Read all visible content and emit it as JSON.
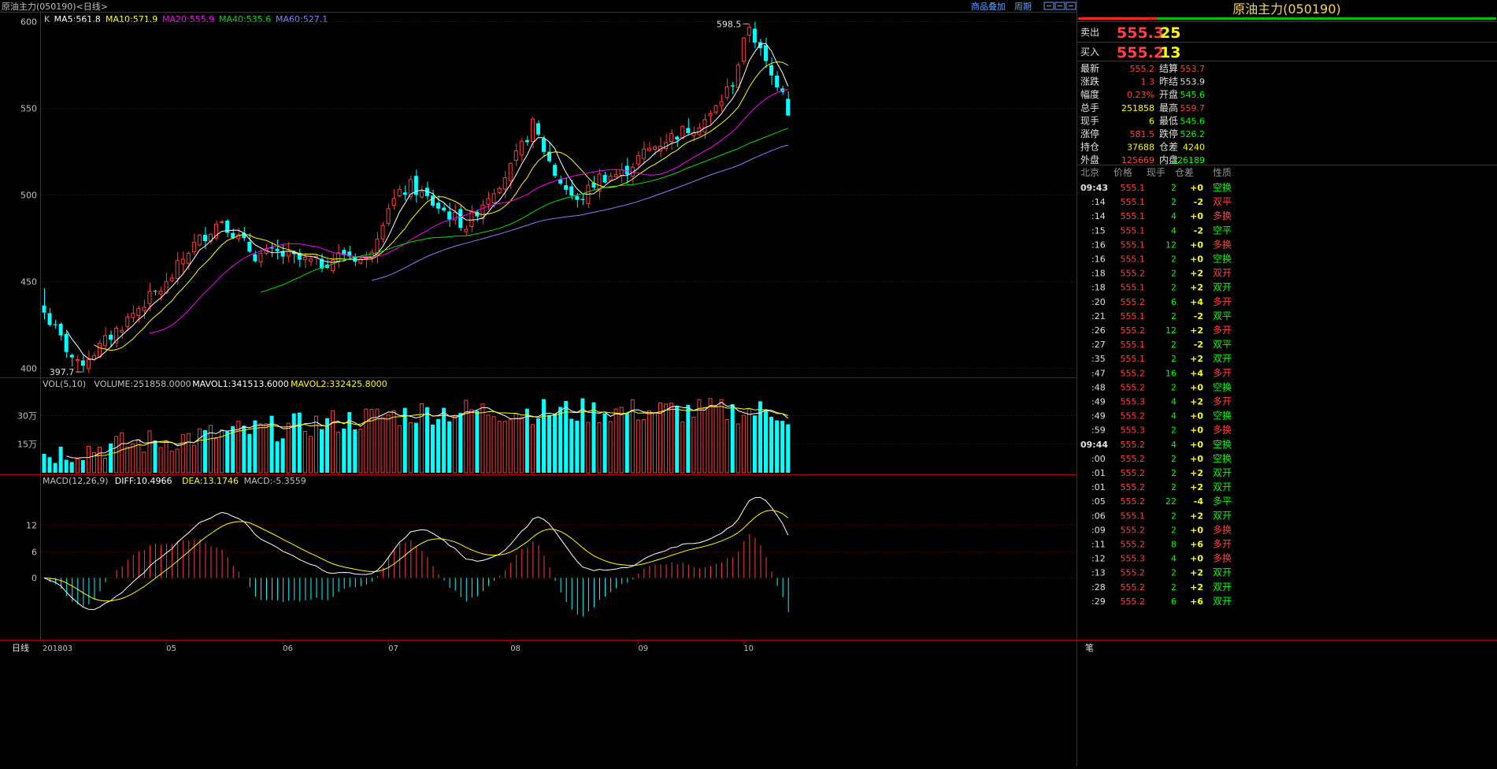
{
  "window": {
    "title": "原油主力(050190)<日线>",
    "links": [
      "商品叠加",
      "周期"
    ]
  },
  "price_panel": {
    "ma_legend": [
      {
        "label": "K",
        "color": "#c0c0c0"
      },
      {
        "label": "MA5:561.8",
        "color": "#ffffff"
      },
      {
        "label": "MA10:571.9",
        "color": "#ffff00"
      },
      {
        "label": "MA20:555.9",
        "color": "#ff00ff"
      },
      {
        "label": "MA40:535.6",
        "color": "#00e000"
      },
      {
        "label": "MA60:527.1",
        "color": "#8080ff"
      }
    ],
    "y_ticks": [
      {
        "label": "600",
        "value": 600
      },
      {
        "label": "550",
        "value": 550
      },
      {
        "label": "500",
        "value": 500
      },
      {
        "label": "450",
        "value": 450
      },
      {
        "label": "400",
        "value": 400
      }
    ],
    "high_marker": "598.5",
    "low_marker": "397.7"
  },
  "volume_panel": {
    "legend": [
      {
        "label": "VOL(5,10)",
        "color": "#c0c0c0"
      },
      {
        "label": "VOLUME:251858.0000",
        "color": "#c0c0c0"
      },
      {
        "label": "MAVOL1:341513.6000",
        "color": "#ffffff"
      },
      {
        "label": "MAVOL2:332425.8000",
        "color": "#ffff00"
      }
    ],
    "y_ticks": [
      {
        "label": "30万",
        "value": 300000
      },
      {
        "label": "15万",
        "value": 150000
      }
    ]
  },
  "macd_panel": {
    "legend": [
      {
        "label": "MACD(12,26,9)",
        "color": "#c0c0c0"
      },
      {
        "label": "DIFF:10.4966",
        "color": "#ffffff"
      },
      {
        "label": "DEA:13.1746",
        "color": "#ffff00"
      },
      {
        "label": "MACD:-5.3559",
        "color": "#c0c0c0"
      }
    ],
    "y_ticks": [
      {
        "label": "12",
        "value": 12
      },
      {
        "label": "6",
        "value": 6
      },
      {
        "label": "0",
        "value": 0
      }
    ]
  },
  "x_axis": {
    "corner_label": "日线",
    "labels": [
      {
        "label": "201803",
        "index": 0
      },
      {
        "label": "05",
        "index": 22
      },
      {
        "label": "06",
        "index": 43
      },
      {
        "label": "07",
        "index": 62
      },
      {
        "label": "08",
        "index": 84
      },
      {
        "label": "09",
        "index": 107
      },
      {
        "label": "10",
        "index": 126
      }
    ]
  },
  "chart_data": {
    "type": "candlestick",
    "title": "原油主力(050190)<日线>",
    "ylim": [
      395,
      605
    ],
    "candles": [],
    "volume": [],
    "macd": {
      "diff": [],
      "dea": [],
      "hist": []
    },
    "ma": {
      "ma5": [],
      "ma10": [],
      "ma20": [],
      "ma40": [],
      "ma60": []
    }
  },
  "quote": {
    "name": "原油主力(050190)",
    "sell": {
      "label": "卖出",
      "price": "555.3",
      "qty": "25"
    },
    "buy": {
      "label": "买入",
      "price": "555.2",
      "qty": "13"
    },
    "stats": [
      {
        "l1": "最新",
        "v1": "555.2",
        "c1": "#ff4040",
        "l2": "结算",
        "v2": "553.7",
        "c2": "#ff4040"
      },
      {
        "l1": "涨跌",
        "v1": "1.3",
        "c1": "#ff4040",
        "l2": "昨结",
        "v2": "553.9",
        "c2": "#e0e0e0"
      },
      {
        "l1": "幅度",
        "v1": "0.23%",
        "c1": "#ff4040",
        "l2": "开盘",
        "v2": "545.6",
        "c2": "#00ff00"
      },
      {
        "l1": "总手",
        "v1": "251858",
        "c1": "#ffff00",
        "l2": "最高",
        "v2": "559.7",
        "c2": "#ff4040"
      },
      {
        "l1": "现手",
        "v1": "6",
        "c1": "#ffff00",
        "l2": "最低",
        "v2": "545.6",
        "c2": "#00ff00"
      },
      {
        "l1": "涨停",
        "v1": "581.5",
        "c1": "#ff4040",
        "l2": "跌停",
        "v2": "526.2",
        "c2": "#00ff00"
      },
      {
        "l1": "持仓",
        "v1": "37688",
        "c1": "#ffff00",
        "l2": "仓差",
        "v2": "4240",
        "c2": "#ffff00"
      },
      {
        "l1": "外盘",
        "v1": "125669",
        "c1": "#ff4040",
        "l2": "内盘",
        "v2": "126189",
        "c2": "#00ff00"
      }
    ],
    "tick_headers": [
      "北京",
      "价格",
      "现手",
      "仓差",
      "性质"
    ],
    "ticks": [
      {
        "t": "09:43",
        "p": "555.1",
        "pc": "#ff4040",
        "q": "2",
        "d": "+0",
        "n": "空换",
        "nc": "#00ff00",
        "bold": true
      },
      {
        "t": ":14",
        "p": "555.1",
        "pc": "#ff4040",
        "q": "2",
        "d": "-2",
        "n": "双平",
        "nc": "#ff4040"
      },
      {
        "t": ":14",
        "p": "555.1",
        "pc": "#ff4040",
        "q": "4",
        "d": "+0",
        "n": "多换",
        "nc": "#ff4040"
      },
      {
        "t": ":15",
        "p": "555.1",
        "pc": "#ff4040",
        "q": "4",
        "d": "-2",
        "n": "空平",
        "nc": "#00ff00"
      },
      {
        "t": ":16",
        "p": "555.1",
        "pc": "#ff4040",
        "q": "12",
        "d": "+0",
        "n": "多换",
        "nc": "#ff4040"
      },
      {
        "t": ":16",
        "p": "555.1",
        "pc": "#ff4040",
        "q": "2",
        "d": "+0",
        "n": "空换",
        "nc": "#00ff00"
      },
      {
        "t": ":18",
        "p": "555.2",
        "pc": "#ff4040",
        "q": "2",
        "d": "+2",
        "n": "双开",
        "nc": "#ff4040"
      },
      {
        "t": ":18",
        "p": "555.1",
        "pc": "#ff4040",
        "q": "2",
        "d": "+2",
        "n": "双开",
        "nc": "#00ff00"
      },
      {
        "t": ":20",
        "p": "555.2",
        "pc": "#ff4040",
        "q": "6",
        "d": "+4",
        "n": "多开",
        "nc": "#ff4040"
      },
      {
        "t": ":21",
        "p": "555.1",
        "pc": "#ff4040",
        "q": "2",
        "d": "-2",
        "n": "双平",
        "nc": "#00ff00"
      },
      {
        "t": ":26",
        "p": "555.2",
        "pc": "#ff4040",
        "q": "12",
        "d": "+2",
        "n": "多开",
        "nc": "#ff4040"
      },
      {
        "t": ":27",
        "p": "555.1",
        "pc": "#ff4040",
        "q": "2",
        "d": "-2",
        "n": "双平",
        "nc": "#00ff00"
      },
      {
        "t": ":35",
        "p": "555.1",
        "pc": "#ff4040",
        "q": "2",
        "d": "+2",
        "n": "双开",
        "nc": "#00ff00"
      },
      {
        "t": ":47",
        "p": "555.2",
        "pc": "#ff4040",
        "q": "16",
        "d": "+4",
        "n": "多开",
        "nc": "#ff4040"
      },
      {
        "t": ":48",
        "p": "555.2",
        "pc": "#ff4040",
        "q": "2",
        "d": "+0",
        "n": "空换",
        "nc": "#00ff00"
      },
      {
        "t": ":49",
        "p": "555.3",
        "pc": "#ff4040",
        "q": "4",
        "d": "+2",
        "n": "多开",
        "nc": "#ff4040"
      },
      {
        "t": ":49",
        "p": "555.2",
        "pc": "#ff4040",
        "q": "4",
        "d": "+0",
        "n": "空换",
        "nc": "#00ff00"
      },
      {
        "t": ":59",
        "p": "555.3",
        "pc": "#ff4040",
        "q": "2",
        "d": "+0",
        "n": "多换",
        "nc": "#ff4040"
      },
      {
        "t": "09:44",
        "p": "555.2",
        "pc": "#ff4040",
        "q": "4",
        "d": "+0",
        "n": "空换",
        "nc": "#00ff00",
        "bold": true
      },
      {
        "t": ":00",
        "p": "555.2",
        "pc": "#ff4040",
        "q": "2",
        "d": "+0",
        "n": "空换",
        "nc": "#00ff00"
      },
      {
        "t": ":01",
        "p": "555.2",
        "pc": "#ff4040",
        "q": "2",
        "d": "+2",
        "n": "双开",
        "nc": "#00ff00"
      },
      {
        "t": ":01",
        "p": "555.2",
        "pc": "#ff4040",
        "q": "2",
        "d": "+2",
        "n": "双开",
        "nc": "#00ff00"
      },
      {
        "t": ":05",
        "p": "555.2",
        "pc": "#ff4040",
        "q": "22",
        "d": "-4",
        "n": "多平",
        "nc": "#00ff00"
      },
      {
        "t": ":06",
        "p": "555.1",
        "pc": "#ff4040",
        "q": "2",
        "d": "+2",
        "n": "双开",
        "nc": "#00ff00"
      },
      {
        "t": ":09",
        "p": "555.2",
        "pc": "#ff4040",
        "q": "2",
        "d": "+0",
        "n": "多换",
        "nc": "#ff4040"
      },
      {
        "t": ":11",
        "p": "555.2",
        "pc": "#ff4040",
        "q": "8",
        "d": "+6",
        "n": "多开",
        "nc": "#ff4040"
      },
      {
        "t": ":12",
        "p": "555.3",
        "pc": "#ff4040",
        "q": "4",
        "d": "+0",
        "n": "多换",
        "nc": "#ff4040"
      },
      {
        "t": ":13",
        "p": "555.2",
        "pc": "#ff4040",
        "q": "2",
        "d": "+2",
        "n": "双开",
        "nc": "#00ff00"
      },
      {
        "t": ":28",
        "p": "555.2",
        "pc": "#ff4040",
        "q": "2",
        "d": "+2",
        "n": "双开",
        "nc": "#00ff00"
      },
      {
        "t": ":29",
        "p": "555.2",
        "pc": "#ff4040",
        "q": "6",
        "d": "+6",
        "n": "双开",
        "nc": "#00ff00"
      }
    ],
    "bottom_label": "笔"
  },
  "colors": {
    "up": "#ff3c3c",
    "down": "#00ffff",
    "grid": "#7a0000",
    "frame": "#b00000"
  }
}
